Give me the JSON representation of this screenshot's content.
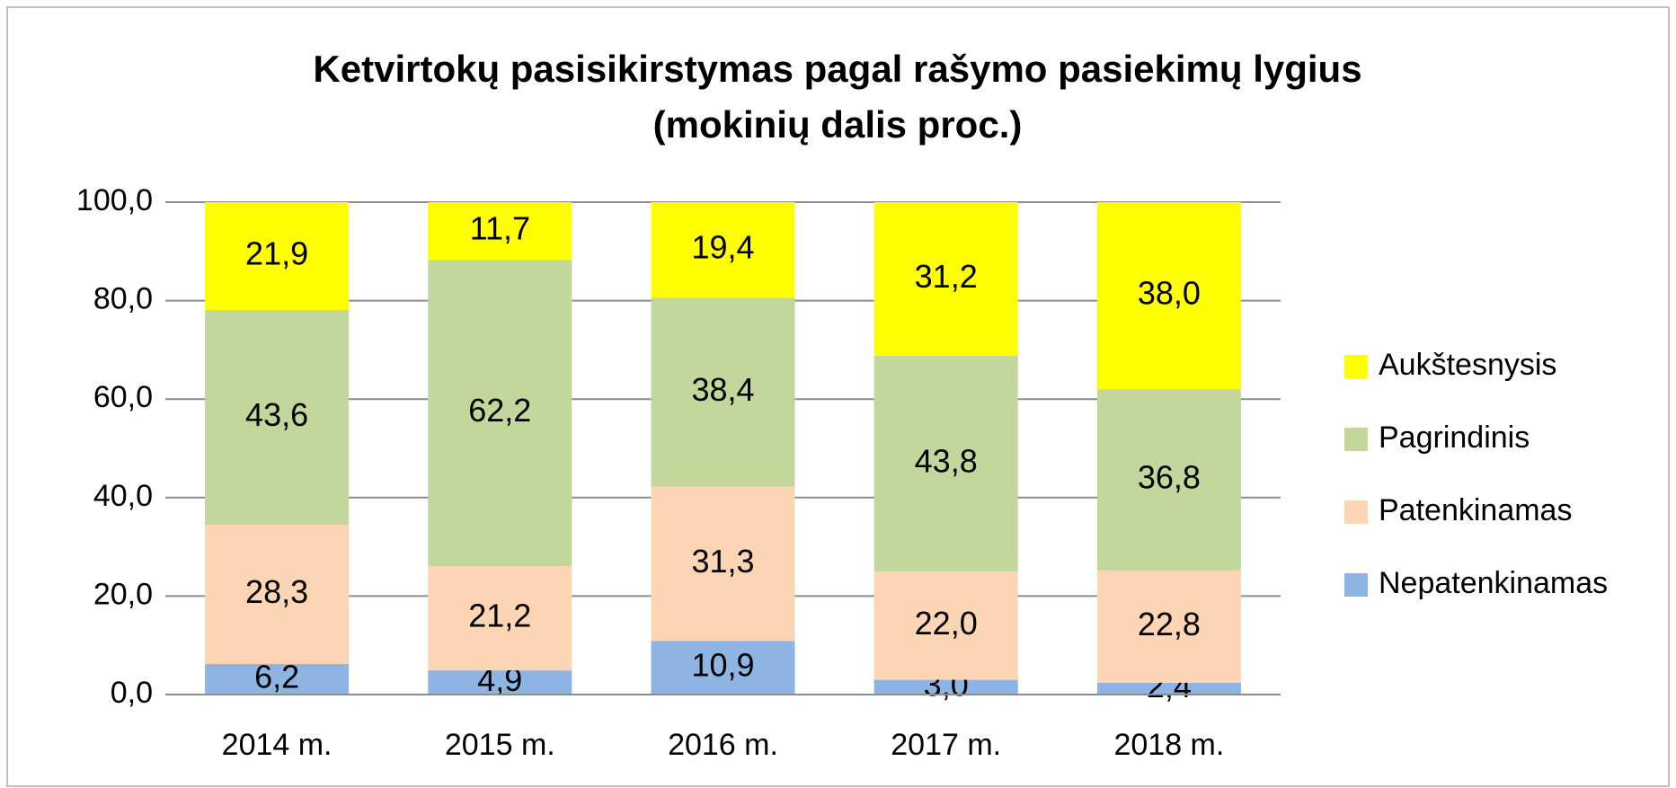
{
  "chart_data": {
    "type": "stacked_bar",
    "title": [
      "Ketvirtokų pasisikirstymas pagal rašymo pasiekimų lygius",
      "(mokinių dalis proc.)"
    ],
    "categories": [
      "2014 m.",
      "2015 m.",
      "2016 m.",
      "2017 m.",
      "2018 m."
    ],
    "series": [
      {
        "name": "Nepatenkinamas",
        "color": "#8db4e2",
        "values": [
          6.2,
          4.9,
          10.9,
          3.0,
          2.4
        ],
        "value_labels": [
          "6,2",
          "4,9",
          "10,9",
          "3,0",
          "2,4"
        ]
      },
      {
        "name": "Patenkinamas",
        "color": "#fcd5b5",
        "values": [
          28.3,
          21.2,
          31.3,
          22.0,
          22.8
        ],
        "value_labels": [
          "28,3",
          "21,2",
          "31,3",
          "22,0",
          "22,8"
        ]
      },
      {
        "name": "Pagrindinis",
        "color": "#c3d69b",
        "values": [
          43.6,
          62.2,
          38.4,
          43.8,
          36.8
        ],
        "value_labels": [
          "43,6",
          "62,2",
          "38,4",
          "43,8",
          "36,8"
        ]
      },
      {
        "name": "Aukštesnysis",
        "color": "#ffff00",
        "values": [
          21.9,
          11.7,
          19.4,
          31.2,
          38.0
        ],
        "value_labels": [
          "21,9",
          "11,7",
          "19,4",
          "31,2",
          "38,0"
        ]
      }
    ],
    "ylim": [
      0,
      100
    ],
    "yticks": [
      {
        "value": 0,
        "label": "0,0"
      },
      {
        "value": 20,
        "label": "20,0"
      },
      {
        "value": 40,
        "label": "40,0"
      },
      {
        "value": 60,
        "label": "60,0"
      },
      {
        "value": 80,
        "label": "80,0"
      },
      {
        "value": 100,
        "label": "100,0"
      }
    ],
    "grid": true,
    "legend": "right"
  }
}
